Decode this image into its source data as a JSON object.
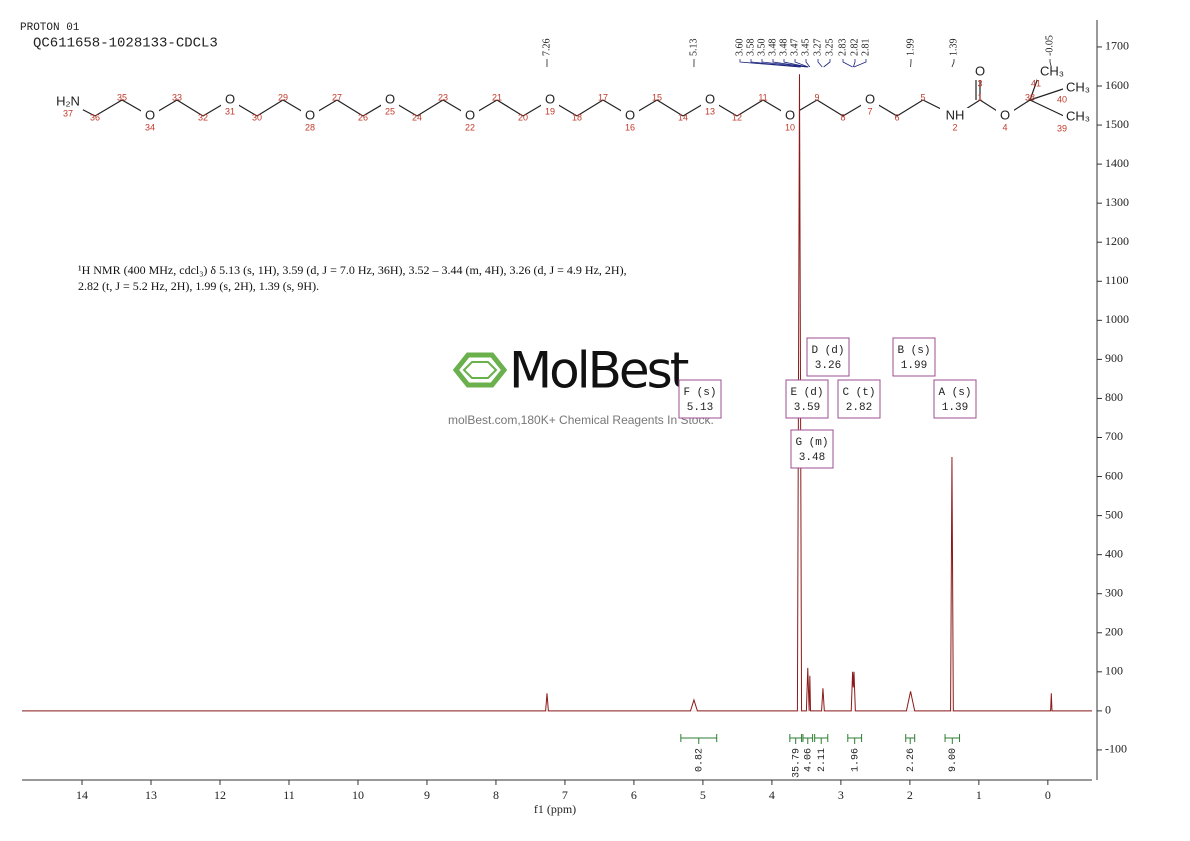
{
  "header": {
    "experiment": "PROTON 01",
    "sample": "QC611658-1028133-CDCL3"
  },
  "structure": {
    "atoms": [
      {
        "label": "H₂N",
        "number": 37
      },
      {
        "number": 36
      },
      {
        "number": 35
      },
      {
        "label": "O",
        "number": 34
      },
      {
        "number": 33
      },
      {
        "number": 32
      },
      {
        "label": "O",
        "number": 31
      },
      {
        "number": 30
      },
      {
        "number": 29
      },
      {
        "label": "O",
        "number": 28
      },
      {
        "number": 27
      },
      {
        "number": 26
      },
      {
        "label": "O",
        "number": 25
      },
      {
        "number": 24
      },
      {
        "number": 23
      },
      {
        "label": "O",
        "number": 22
      },
      {
        "number": 21
      },
      {
        "number": 20
      },
      {
        "label": "O",
        "number": 19
      },
      {
        "number": 18
      },
      {
        "number": 17
      },
      {
        "label": "O",
        "number": 16
      },
      {
        "number": 15
      },
      {
        "number": 14
      },
      {
        "label": "O",
        "number": 13
      },
      {
        "number": 12
      },
      {
        "number": 11
      },
      {
        "label": "O",
        "number": 10
      },
      {
        "number": 9
      },
      {
        "number": 8
      },
      {
        "label": "O",
        "number": 7
      },
      {
        "number": 6
      },
      {
        "number": 5
      },
      {
        "label": "NH",
        "number": 2
      },
      {
        "number": 1
      },
      {
        "label": "O",
        "number": 4
      },
      {
        "number": 38
      },
      {
        "label": "O",
        "number": 3
      },
      {
        "label": "CH₃",
        "number": 41
      },
      {
        "label": "CH₃",
        "number": 40
      },
      {
        "label": "CH₃",
        "number": 39
      }
    ]
  },
  "description": "¹H NMR (400 MHz, cdcl₃) δ 5.13 (s, 1H), 3.59 (d, J = 7.0 Hz, 36H), 3.52 – 3.44 (m, 4H), 3.26 (d, J = 4.9 Hz, 2H), 2.82 (t, J = 5.2 Hz, 2H), 1.99 (s, 2H), 1.39 (s, 9H).",
  "watermark": {
    "brand": "MolBest",
    "tagline": "molBest.com,180K+ Chemical Reagents In Stock."
  },
  "chart_data": {
    "type": "line",
    "xlabel": "f1 (ppm)",
    "x": [
      14.87,
      7.28,
      7.26,
      7.24,
      5.18,
      5.13,
      5.08,
      3.63,
      3.6,
      3.57,
      3.5,
      3.48,
      3.46,
      3.45,
      3.44,
      3.28,
      3.26,
      3.24,
      2.85,
      2.83,
      2.82,
      2.81,
      2.79,
      2.05,
      1.99,
      1.93,
      1.41,
      1.39,
      1.37,
      -0.04,
      -0.05,
      -0.06,
      -0.64
    ],
    "series": [
      {
        "color": "#8b1a1a",
        "values": [
          0,
          0,
          45,
          0,
          0,
          28,
          0,
          0,
          1630,
          0,
          0,
          110,
          0,
          90,
          0,
          0,
          58,
          0,
          0,
          100,
          60,
          100,
          0,
          0,
          50,
          0,
          0,
          650,
          0,
          0,
          45,
          0,
          0
        ]
      }
    ],
    "xlim": [
      14.87,
      -0.64
    ],
    "ylim": [
      -177,
      1769
    ],
    "xticks": [
      14,
      13,
      12,
      11,
      10,
      9,
      8,
      7,
      6,
      5,
      4,
      3,
      2,
      1,
      0
    ],
    "yticks": [
      -100,
      0,
      100,
      200,
      300,
      400,
      500,
      600,
      700,
      800,
      900,
      1000,
      1100,
      1200,
      1300,
      1400,
      1500,
      1600,
      1700
    ],
    "peaks": [
      {
        "value": 7.26,
        "label": "7.26"
      },
      {
        "value": 5.13,
        "label": "5.13"
      },
      {
        "value": 3.6,
        "label": "3.60"
      },
      {
        "value": 3.58,
        "label": "3.58"
      },
      {
        "value": 3.5,
        "label": "3.50"
      },
      {
        "value": 3.48,
        "label": "3.48"
      },
      {
        "value": 3.48,
        "label": "3.48"
      },
      {
        "value": 3.47,
        "label": "3.47"
      },
      {
        "value": 3.45,
        "label": "3.45"
      },
      {
        "value": 3.27,
        "label": "3.27"
      },
      {
        "value": 3.25,
        "label": "3.25"
      },
      {
        "value": 2.83,
        "label": "2.83"
      },
      {
        "value": 2.82,
        "label": "2.82"
      },
      {
        "value": 2.81,
        "label": "2.81"
      },
      {
        "value": 1.99,
        "label": "1.99"
      },
      {
        "value": 1.39,
        "label": "1.39"
      },
      {
        "value": -0.05,
        "label": "-0.05"
      }
    ],
    "multiplets": [
      {
        "name": "F (s)",
        "shift": 5.13
      },
      {
        "name": "E (d)",
        "shift": 3.59
      },
      {
        "name": "D (d)",
        "shift": 3.26
      },
      {
        "name": "C (t)",
        "shift": 2.82
      },
      {
        "name": "B (s)",
        "shift": 1.99
      },
      {
        "name": "A (s)",
        "shift": 1.39
      },
      {
        "name": "G (m)",
        "shift": 3.48
      }
    ],
    "integrals": {
      "ranges": [
        [
          5.32,
          4.8
        ],
        [
          3.74,
          3.57
        ],
        [
          3.55,
          3.41
        ],
        [
          3.38,
          3.19
        ],
        [
          2.9,
          2.7
        ],
        [
          2.06,
          1.93
        ],
        [
          1.49,
          1.28
        ]
      ],
      "values": [
        0.82,
        35.79,
        4.06,
        2.11,
        1.96,
        2.26,
        9
      ],
      "value_labels": [
        "0.82",
        "35.79",
        "4.06",
        "2.11",
        "1.96",
        "2.26",
        "9.00"
      ]
    }
  }
}
